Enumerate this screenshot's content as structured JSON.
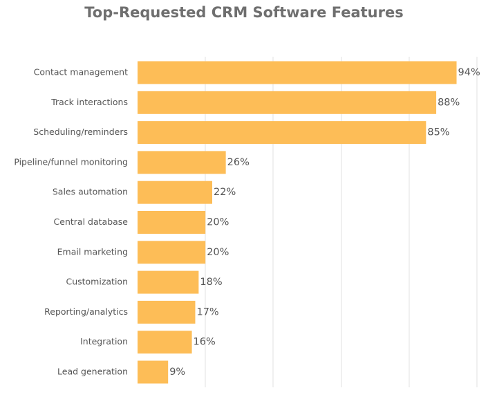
{
  "chart_data": {
    "type": "bar",
    "orientation": "horizontal",
    "title": "Top-Requested CRM Software Features",
    "xlabel": "",
    "ylabel": "",
    "categories": [
      "Contact management",
      "Track interactions",
      "Scheduling/reminders",
      "Pipeline/funnel monitoring",
      "Sales automation",
      "Central database",
      "Email marketing",
      "Customization",
      "Reporting/analytics",
      "Integration",
      "Lead generation"
    ],
    "values": [
      94,
      88,
      85,
      26,
      22,
      20,
      20,
      18,
      17,
      16,
      9
    ],
    "value_labels": [
      "94%",
      "88%",
      "85%",
      "26%",
      "22%",
      "20%",
      "20%",
      "18%",
      "17%",
      "16%",
      "9%"
    ],
    "xlim": [
      0,
      100
    ],
    "grid": true,
    "legend": "none",
    "bar_color": "#fdbd57"
  }
}
